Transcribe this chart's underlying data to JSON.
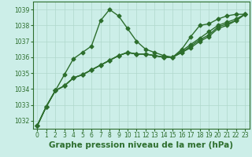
{
  "title": "Graphe pression niveau de la mer (hPa)",
  "background_color": "#cceee8",
  "grid_color": "#b0d8cc",
  "line_color": "#2d6e2d",
  "xlim": [
    -0.5,
    23.5
  ],
  "ylim": [
    1031.5,
    1039.5
  ],
  "yticks": [
    1032,
    1033,
    1034,
    1035,
    1036,
    1037,
    1038,
    1039
  ],
  "xticks": [
    0,
    1,
    2,
    3,
    4,
    5,
    6,
    7,
    8,
    9,
    10,
    11,
    12,
    13,
    14,
    15,
    16,
    17,
    18,
    19,
    20,
    21,
    22,
    23
  ],
  "series": [
    [
      1031.7,
      1032.9,
      1033.9,
      1034.9,
      1035.9,
      1036.3,
      1036.7,
      1038.3,
      1039.0,
      1038.6,
      1037.8,
      1037.0,
      1036.5,
      1036.3,
      1036.1,
      1036.0,
      1036.5,
      1037.3,
      1038.0,
      1038.1,
      1038.4,
      1038.6,
      1038.7,
      1038.7
    ],
    [
      1031.7,
      1032.9,
      1033.9,
      1034.2,
      1034.7,
      1034.9,
      1035.2,
      1035.5,
      1035.8,
      1036.1,
      1036.3,
      1036.2,
      1036.2,
      1036.1,
      1036.0,
      1036.0,
      1036.4,
      1036.8,
      1037.2,
      1037.6,
      1038.0,
      1038.2,
      1038.4,
      1038.7
    ],
    [
      1031.7,
      1032.9,
      1033.9,
      1034.2,
      1034.7,
      1034.9,
      1035.2,
      1035.5,
      1035.8,
      1036.1,
      1036.3,
      1036.2,
      1036.2,
      1036.1,
      1036.0,
      1036.0,
      1036.3,
      1036.7,
      1037.1,
      1037.4,
      1037.9,
      1038.1,
      1038.3,
      1038.7
    ],
    [
      1031.7,
      1032.9,
      1033.9,
      1034.2,
      1034.7,
      1034.9,
      1035.2,
      1035.5,
      1035.8,
      1036.1,
      1036.3,
      1036.2,
      1036.2,
      1036.1,
      1036.0,
      1036.0,
      1036.3,
      1036.6,
      1037.0,
      1037.3,
      1037.8,
      1038.0,
      1038.3,
      1038.7
    ]
  ],
  "marker": "D",
  "marker_size": 2.5,
  "line_width": 1.0,
  "title_fontsize": 7.5,
  "tick_fontsize": 5.5,
  "ylabel_fontsize": 5.5
}
